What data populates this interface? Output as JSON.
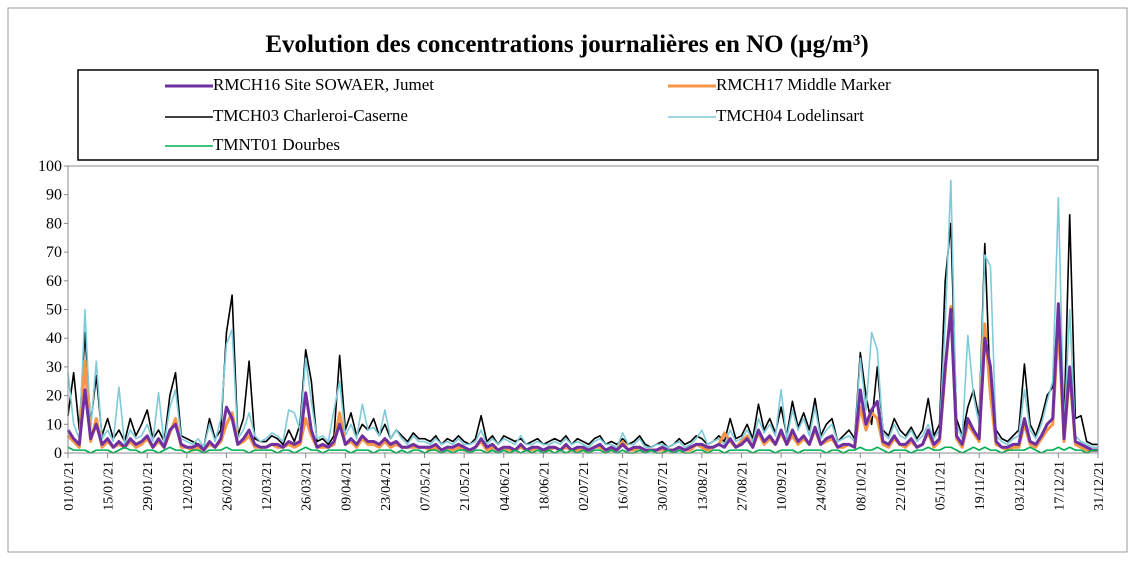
{
  "chart_data": {
    "type": "line",
    "title": "Evolution des concentrations journalières en NO (µg/m³)",
    "legend": "top",
    "grid": false,
    "ylim": [
      0,
      100
    ],
    "yticks": [
      0,
      10,
      20,
      30,
      40,
      50,
      60,
      70,
      80,
      90,
      100
    ],
    "categories": [
      "01/01/21",
      null,
      null,
      null,
      null,
      null,
      null,
      "15/01/21",
      null,
      null,
      null,
      null,
      null,
      null,
      "29/01/21",
      null,
      null,
      null,
      null,
      null,
      null,
      "12/02/21",
      null,
      null,
      null,
      null,
      null,
      null,
      "26/02/21",
      null,
      null,
      null,
      null,
      null,
      null,
      "12/03/21",
      null,
      null,
      null,
      null,
      null,
      null,
      "26/03/21",
      null,
      null,
      null,
      null,
      null,
      null,
      "09/04/21",
      null,
      null,
      null,
      null,
      null,
      null,
      "23/04/21",
      null,
      null,
      null,
      null,
      null,
      null,
      "07/05/21",
      null,
      null,
      null,
      null,
      null,
      null,
      "21/05/21",
      null,
      null,
      null,
      null,
      null,
      null,
      "04/06/21",
      null,
      null,
      null,
      null,
      null,
      null,
      "18/06/21",
      null,
      null,
      null,
      null,
      null,
      null,
      "02/07/21",
      null,
      null,
      null,
      null,
      null,
      null,
      "16/07/21",
      null,
      null,
      null,
      null,
      null,
      null,
      "30/07/21",
      null,
      null,
      null,
      null,
      null,
      null,
      "13/08/21",
      null,
      null,
      null,
      null,
      null,
      null,
      "27/08/21",
      null,
      null,
      null,
      null,
      null,
      null,
      "10/09/21",
      null,
      null,
      null,
      null,
      null,
      null,
      "24/09/21",
      null,
      null,
      null,
      null,
      null,
      null,
      "08/10/21",
      null,
      null,
      null,
      null,
      null,
      null,
      "22/10/21",
      null,
      null,
      null,
      null,
      null,
      null,
      "05/11/21",
      null,
      null,
      null,
      null,
      null,
      null,
      "19/11/21",
      null,
      null,
      null,
      null,
      null,
      null,
      "03/12/21",
      null,
      null,
      null,
      null,
      null,
      null,
      "17/12/21",
      null,
      null,
      null,
      null,
      null,
      null,
      "31/12/21"
    ],
    "series": [
      {
        "name": "TMCH03 Charleroi-Caserne",
        "color": "#000000",
        "width": 1.6,
        "values": [
          13,
          28,
          8,
          42,
          10,
          27,
          6,
          12,
          5,
          8,
          4,
          12,
          6,
          10,
          15,
          5,
          8,
          4,
          20,
          28,
          6,
          5,
          4,
          3,
          2,
          12,
          5,
          8,
          42,
          55,
          6,
          12,
          32,
          5,
          4,
          4,
          6,
          5,
          3,
          8,
          4,
          10,
          36,
          25,
          4,
          5,
          3,
          6,
          34,
          8,
          14,
          6,
          10,
          8,
          12,
          6,
          10,
          5,
          8,
          6,
          4,
          7,
          5,
          5,
          4,
          6,
          3,
          5,
          4,
          6,
          4,
          3,
          5,
          13,
          4,
          6,
          3,
          6,
          5,
          4,
          5,
          3,
          4,
          5,
          3,
          4,
          5,
          4,
          6,
          3,
          5,
          4,
          3,
          5,
          6,
          3,
          4,
          3,
          5,
          3,
          4,
          6,
          3,
          2,
          3,
          4,
          2,
          3,
          5,
          3,
          4,
          6,
          5,
          3,
          4,
          6,
          4,
          12,
          5,
          6,
          10,
          5,
          17,
          8,
          12,
          7,
          16,
          6,
          18,
          9,
          14,
          8,
          19,
          6,
          10,
          12,
          4,
          6,
          8,
          5,
          35,
          20,
          10,
          30,
          8,
          6,
          12,
          8,
          6,
          9,
          5,
          8,
          19,
          6,
          10,
          60,
          80,
          12,
          6,
          16,
          22,
          12,
          73,
          20,
          8,
          5,
          4,
          6,
          8,
          31,
          10,
          6,
          12,
          20,
          23,
          50,
          10,
          83,
          12,
          13,
          4,
          3,
          3
        ]
      },
      {
        "name": "TMCH04 Lodelinsart",
        "color": "#7ecbda",
        "width": 1.6,
        "values": [
          28,
          10,
          5,
          50,
          8,
          32,
          5,
          8,
          4,
          23,
          3,
          8,
          5,
          6,
          10,
          4,
          21,
          3,
          16,
          22,
          5,
          4,
          3,
          5,
          2,
          10,
          4,
          12,
          38,
          43,
          5,
          8,
          14,
          6,
          4,
          5,
          7,
          6,
          4,
          15,
          14,
          8,
          33,
          18,
          5,
          6,
          4,
          15,
          25,
          6,
          10,
          5,
          17,
          8,
          9,
          6,
          15,
          5,
          8,
          5,
          3,
          6,
          4,
          4,
          3,
          5,
          3,
          4,
          3,
          5,
          3,
          3,
          4,
          8,
          3,
          5,
          3,
          5,
          4,
          3,
          6,
          3,
          3,
          4,
          3,
          3,
          4,
          3,
          5,
          3,
          4,
          3,
          2,
          4,
          5,
          3,
          3,
          2,
          7,
          3,
          3,
          5,
          2,
          2,
          3,
          3,
          2,
          3,
          4,
          2,
          3,
          5,
          8,
          3,
          4,
          5,
          3,
          8,
          4,
          5,
          8,
          4,
          12,
          7,
          10,
          6,
          22,
          5,
          15,
          8,
          12,
          6,
          16,
          5,
          8,
          10,
          4,
          5,
          6,
          4,
          33,
          15,
          42,
          36,
          7,
          5,
          10,
          6,
          5,
          8,
          4,
          6,
          10,
          5,
          8,
          45,
          95,
          10,
          5,
          41,
          20,
          10,
          69,
          65,
          6,
          4,
          3,
          5,
          6,
          22,
          8,
          5,
          10,
          18,
          25,
          89,
          8,
          50,
          6,
          4,
          3,
          2,
          2
        ]
      },
      {
        "name": "RMCH17 Middle Marker",
        "color": "#f79646",
        "width": 3,
        "values": [
          6,
          4,
          2,
          32,
          4,
          12,
          2,
          4,
          2,
          3,
          2,
          4,
          2,
          3,
          5,
          2,
          4,
          2,
          7,
          12,
          2,
          2,
          1,
          2,
          1,
          3,
          2,
          4,
          10,
          14,
          3,
          4,
          6,
          2,
          2,
          2,
          3,
          2,
          2,
          3,
          2,
          3,
          12,
          6,
          2,
          2,
          2,
          3,
          14,
          3,
          4,
          2,
          5,
          3,
          3,
          2,
          4,
          2,
          3,
          2,
          2,
          2,
          2,
          2,
          1,
          2,
          1,
          2,
          1,
          2,
          1,
          1,
          2,
          4,
          1,
          2,
          1,
          2,
          1,
          1,
          2,
          1,
          1,
          2,
          1,
          1,
          2,
          1,
          2,
          1,
          1,
          1,
          1,
          2,
          2,
          1,
          1,
          1,
          4,
          1,
          1,
          2,
          1,
          1,
          1,
          1,
          1,
          1,
          2,
          1,
          1,
          3,
          2,
          1,
          2,
          3,
          7,
          4,
          2,
          4,
          6,
          2,
          7,
          3,
          5,
          3,
          7,
          3,
          6,
          3,
          5,
          3,
          8,
          3,
          4,
          5,
          2,
          2,
          3,
          2,
          16,
          8,
          14,
          12,
          3,
          2,
          5,
          3,
          2,
          4,
          2,
          3,
          7,
          2,
          4,
          28,
          51,
          5,
          2,
          10,
          7,
          4,
          45,
          20,
          3,
          2,
          1,
          2,
          2,
          10,
          3,
          2,
          5,
          8,
          10,
          45,
          4,
          28,
          3,
          2,
          1,
          1,
          1
        ]
      },
      {
        "name": "RMCH16 Site SOWAER, Jumet",
        "color": "#7030a0",
        "width": 3,
        "values": [
          8,
          5,
          3,
          22,
          5,
          10,
          3,
          5,
          2,
          4,
          2,
          5,
          3,
          4,
          6,
          2,
          5,
          2,
          8,
          10,
          3,
          2,
          2,
          3,
          1,
          4,
          2,
          5,
          16,
          12,
          3,
          5,
          8,
          3,
          2,
          2,
          3,
          3,
          2,
          4,
          3,
          4,
          21,
          8,
          2,
          3,
          2,
          4,
          10,
          3,
          5,
          3,
          6,
          4,
          4,
          3,
          5,
          3,
          4,
          2,
          2,
          3,
          2,
          2,
          2,
          3,
          1,
          2,
          2,
          3,
          2,
          1,
          2,
          5,
          2,
          3,
          1,
          2,
          2,
          1,
          3,
          1,
          2,
          2,
          1,
          2,
          2,
          1,
          3,
          1,
          2,
          2,
          1,
          2,
          3,
          1,
          2,
          1,
          3,
          1,
          2,
          2,
          1,
          1,
          1,
          2,
          1,
          1,
          2,
          1,
          2,
          3,
          3,
          2,
          2,
          3,
          2,
          5,
          2,
          3,
          5,
          2,
          8,
          4,
          6,
          3,
          8,
          3,
          8,
          4,
          6,
          3,
          9,
          3,
          5,
          6,
          2,
          3,
          3,
          2,
          22,
          10,
          15,
          18,
          4,
          3,
          6,
          3,
          3,
          5,
          2,
          3,
          8,
          3,
          5,
          30,
          50,
          6,
          3,
          12,
          8,
          5,
          40,
          30,
          4,
          2,
          2,
          3,
          3,
          12,
          4,
          3,
          6,
          10,
          12,
          52,
          5,
          30,
          4,
          3,
          2,
          1,
          1
        ]
      },
      {
        "name": "TMNT01 Dourbes",
        "color": "#00b050",
        "width": 1.6,
        "values": [
          2,
          1,
          1,
          1,
          0,
          1,
          1,
          1,
          0,
          1,
          2,
          1,
          1,
          0,
          1,
          1,
          0,
          1,
          2,
          1,
          1,
          0,
          1,
          1,
          0,
          1,
          1,
          1,
          2,
          1,
          1,
          1,
          0,
          1,
          1,
          1,
          1,
          0,
          1,
          1,
          0,
          1,
          2,
          1,
          1,
          0,
          1,
          1,
          1,
          1,
          0,
          1,
          1,
          1,
          0,
          1,
          1,
          1,
          0,
          1,
          0,
          1,
          1,
          0,
          1,
          1,
          0,
          1,
          0,
          1,
          1,
          0,
          1,
          1,
          0,
          1,
          0,
          1,
          0,
          1,
          0,
          1,
          0,
          1,
          0,
          1,
          0,
          1,
          0,
          1,
          0,
          1,
          0,
          1,
          1,
          0,
          1,
          0,
          1,
          0,
          0,
          1,
          0,
          1,
          0,
          0,
          1,
          0,
          1,
          0,
          0,
          1,
          1,
          0,
          1,
          1,
          0,
          1,
          1,
          1,
          1,
          0,
          1,
          1,
          1,
          0,
          1,
          1,
          1,
          0,
          1,
          1,
          1,
          1,
          0,
          1,
          1,
          0,
          1,
          1,
          2,
          1,
          1,
          2,
          1,
          0,
          1,
          1,
          1,
          0,
          1,
          1,
          2,
          1,
          1,
          2,
          2,
          1,
          0,
          1,
          2,
          1,
          2,
          1,
          1,
          0,
          1,
          1,
          1,
          1,
          2,
          1,
          0,
          1,
          1,
          2,
          1,
          2,
          1,
          1,
          0,
          1,
          1
        ]
      }
    ],
    "legend_order": [
      3,
      2,
      0,
      1,
      4
    ]
  }
}
